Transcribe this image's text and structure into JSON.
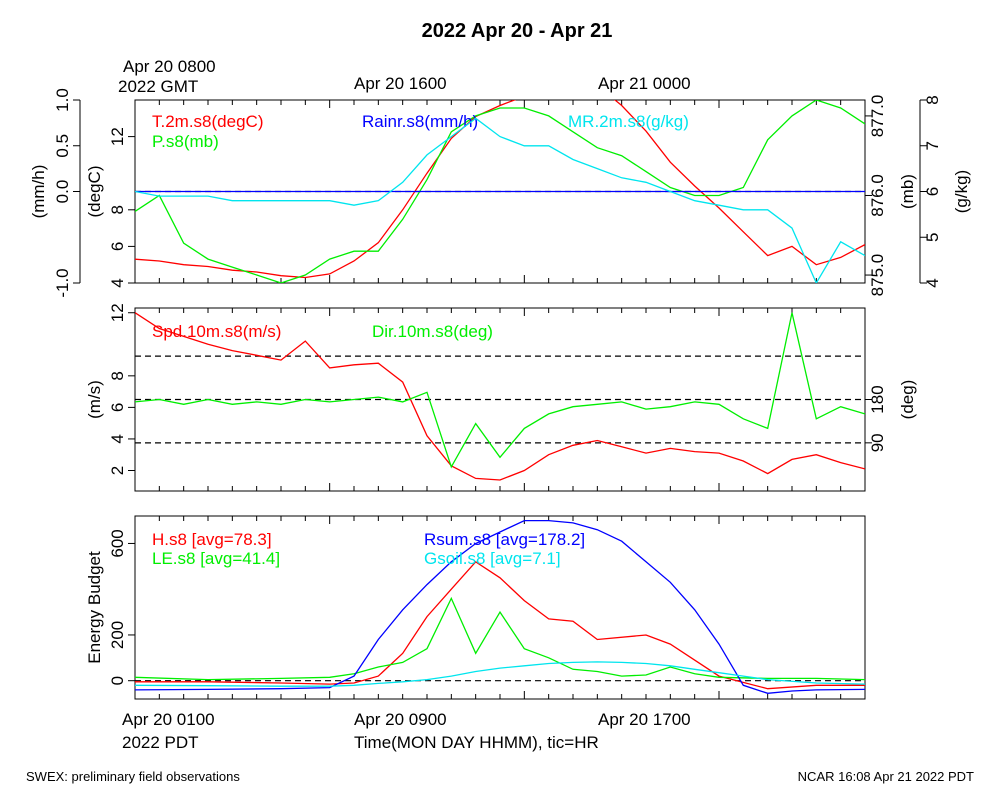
{
  "title": "2022 Apr 20 - Apr 21",
  "top_time_labels": [
    "Apr 20 0800\n2022 GMT",
    "Apr 20 1600",
    "Apr 21 0000"
  ],
  "bottom_time_labels": [
    "Apr 20 0100\n2022 PDT",
    "Apr 20 0900",
    "Apr 20 1700"
  ],
  "xlabel": "Time(MON DAY HHMM), tic=HR",
  "footer_left": "SWEX: preliminary field observations",
  "footer_right": "NCAR 16:08 Apr 21 2022 PDT",
  "colors": {
    "red": "#ff0000",
    "green": "#00ee00",
    "blue": "#0000ff",
    "cyan": "#00e5ee",
    "black": "#000000"
  },
  "chart_data": [
    {
      "type": "line",
      "panel": "top",
      "x_unit": "hours since Apr 20 0100 PDT",
      "xlim": [
        0,
        30
      ],
      "axes": {
        "left_outer": {
          "label": "(mm/h)",
          "ticks": [
            "-1.0",
            "0.0",
            "0.5",
            "1.0"
          ],
          "range": [
            -1.0,
            1.0
          ]
        },
        "left_inner": {
          "label": "(degC)",
          "ticks": [
            "4",
            "6",
            "8",
            "12"
          ],
          "range": [
            4,
            14
          ]
        },
        "right_inner": {
          "label": "(mb)",
          "ticks": [
            "875.0",
            "876.0",
            "877.0"
          ],
          "range": [
            874.9,
            877.2
          ]
        },
        "right_outer": {
          "label": "(g/kg)",
          "ticks": [
            "4",
            "5",
            "6",
            "7",
            "8"
          ],
          "range": [
            4,
            8
          ]
        }
      },
      "reference_lines": [
        {
          "axis": "left_outer",
          "y": 0.0,
          "style": "dashed"
        }
      ],
      "series": [
        {
          "name": "T.2m.s8(degC)",
          "color": "#ff0000",
          "axis": "left_inner",
          "x": [
            0,
            1,
            2,
            3,
            4,
            5,
            6,
            7,
            8,
            9,
            10,
            11,
            12,
            13,
            14,
            15,
            16,
            17,
            18,
            19,
            20,
            21,
            22,
            23,
            24,
            25,
            26,
            27,
            28,
            29,
            30
          ],
          "y": [
            5.3,
            5.2,
            5.0,
            4.9,
            4.7,
            4.6,
            4.4,
            4.3,
            4.5,
            5.2,
            6.2,
            8.0,
            10.0,
            11.9,
            13.1,
            13.7,
            14.2,
            14.3,
            14.5,
            14.8,
            13.7,
            12.3,
            10.6,
            9.3,
            8.1,
            6.8,
            5.5,
            6.0,
            5.0,
            5.4,
            6.1
          ]
        },
        {
          "name": "P.s8(mb)",
          "color": "#00ee00",
          "axis": "right_inner",
          "x": [
            0,
            1,
            2,
            3,
            4,
            5,
            6,
            7,
            8,
            9,
            10,
            11,
            12,
            13,
            14,
            15,
            16,
            17,
            18,
            19,
            20,
            21,
            22,
            23,
            24,
            25,
            26,
            27,
            28,
            29,
            30
          ],
          "y": [
            875.8,
            876.0,
            875.4,
            875.2,
            875.1,
            875.0,
            874.9,
            875.0,
            875.2,
            875.3,
            875.3,
            875.7,
            876.2,
            876.8,
            877.0,
            877.1,
            877.1,
            877.0,
            876.8,
            876.6,
            876.5,
            876.3,
            876.1,
            876.0,
            876.0,
            876.1,
            876.7,
            877.0,
            877.2,
            877.1,
            876.9
          ]
        },
        {
          "name": "Rainr.s8(mm/h)",
          "color": "#0000ff",
          "axis": "left_outer",
          "x": [
            0,
            30
          ],
          "y": [
            0.0,
            0.0
          ]
        },
        {
          "name": "MR.2m.s8(g/kg)",
          "color": "#00e5ee",
          "axis": "right_outer",
          "x": [
            0,
            1,
            2,
            3,
            4,
            5,
            6,
            7,
            8,
            9,
            10,
            11,
            12,
            13,
            14,
            15,
            16,
            17,
            18,
            19,
            20,
            21,
            22,
            23,
            24,
            25,
            26,
            27,
            28,
            29,
            30
          ],
          "y": [
            6.0,
            5.9,
            5.9,
            5.9,
            5.8,
            5.8,
            5.8,
            5.8,
            5.8,
            5.7,
            5.8,
            6.2,
            6.8,
            7.2,
            7.6,
            7.2,
            7.0,
            7.0,
            6.7,
            6.5,
            6.3,
            6.2,
            6.0,
            5.8,
            5.7,
            5.6,
            5.6,
            5.2,
            4.0,
            4.9,
            4.6
          ]
        }
      ]
    },
    {
      "type": "line",
      "panel": "middle",
      "x_unit": "hours since Apr 20 0100 PDT",
      "xlim": [
        0,
        30
      ],
      "axes": {
        "left": {
          "label": "(m/s)",
          "ticks": [
            "2",
            "4",
            "6",
            "8",
            "12"
          ],
          "range": [
            0.7,
            12.3
          ]
        },
        "right": {
          "label": "(deg)",
          "ticks": [
            "90",
            "180"
          ],
          "range": [
            -10,
            370
          ]
        }
      },
      "reference_lines": [
        {
          "axis": "right",
          "y": 90,
          "style": "dashed"
        },
        {
          "axis": "right",
          "y": 180,
          "style": "dashed"
        },
        {
          "axis": "right",
          "y": 270,
          "style": "dashed"
        }
      ],
      "series": [
        {
          "name": "Spd.10m.s8(m/s)",
          "color": "#ff0000",
          "axis": "left",
          "x": [
            0,
            1,
            2,
            3,
            4,
            5,
            6,
            7,
            8,
            9,
            10,
            11,
            12,
            13,
            14,
            15,
            16,
            17,
            18,
            19,
            20,
            21,
            22,
            23,
            24,
            25,
            26,
            27,
            28,
            29,
            30
          ],
          "y": [
            12.0,
            11.0,
            10.5,
            10.0,
            9.6,
            9.3,
            9.0,
            10.2,
            8.5,
            8.7,
            8.8,
            7.6,
            4.2,
            2.3,
            1.5,
            1.4,
            2.0,
            3.0,
            3.6,
            3.9,
            3.5,
            3.1,
            3.4,
            3.2,
            3.1,
            2.6,
            1.8,
            2.7,
            3.0,
            2.5,
            2.1
          ]
        },
        {
          "name": "Dir.10m.s8(deg)",
          "color": "#00ee00",
          "axis": "right",
          "x": [
            0,
            1,
            2,
            3,
            4,
            5,
            6,
            7,
            8,
            9,
            10,
            11,
            12,
            13,
            14,
            15,
            16,
            17,
            18,
            19,
            20,
            21,
            22,
            23,
            24,
            25,
            26,
            27,
            28,
            29,
            30
          ],
          "y": [
            175,
            180,
            170,
            180,
            170,
            175,
            170,
            180,
            175,
            180,
            185,
            175,
            195,
            40,
            130,
            60,
            120,
            150,
            165,
            170,
            175,
            160,
            165,
            175,
            170,
            140,
            120,
            360,
            140,
            165,
            150
          ]
        }
      ]
    },
    {
      "type": "line",
      "panel": "bottom",
      "x_unit": "hours since Apr 20 0100 PDT",
      "xlim": [
        0,
        30
      ],
      "ylabel": "Energy Budget",
      "axes": {
        "left": {
          "label": "Energy Budget",
          "ticks": [
            "0",
            "200",
            "600"
          ],
          "range": [
            -80,
            720
          ]
        }
      },
      "reference_lines": [
        {
          "axis": "left",
          "y": 0,
          "style": "dashed"
        }
      ],
      "series": [
        {
          "name": "H.s8 [avg=78.3]",
          "color": "#ff0000",
          "axis": "left",
          "x": [
            0,
            3,
            6,
            8,
            9,
            10,
            11,
            12,
            13,
            14,
            15,
            16,
            17,
            18,
            19,
            21,
            22,
            24,
            26,
            28,
            30
          ],
          "y": [
            -5,
            -5,
            -10,
            -15,
            -10,
            20,
            120,
            280,
            400,
            520,
            450,
            350,
            270,
            260,
            180,
            200,
            160,
            20,
            -35,
            -20,
            -20
          ]
        },
        {
          "name": "LE.s8 [avg=41.4]",
          "color": "#00ee00",
          "axis": "left",
          "x": [
            0,
            3,
            6,
            8,
            9,
            10,
            11,
            12,
            13,
            14,
            15,
            16,
            17,
            18,
            19,
            20,
            21,
            22,
            23,
            24,
            26,
            28,
            30
          ],
          "y": [
            15,
            5,
            10,
            15,
            30,
            60,
            80,
            140,
            360,
            120,
            300,
            140,
            100,
            50,
            40,
            20,
            25,
            60,
            30,
            15,
            10,
            10,
            5
          ]
        },
        {
          "name": "Rsum.s8 [avg=178.2]",
          "color": "#0000ff",
          "axis": "left",
          "x": [
            0,
            3,
            6,
            8,
            9,
            10,
            11,
            12,
            13,
            14,
            15,
            16,
            17,
            18,
            19,
            20,
            21,
            22,
            23,
            24,
            25,
            26,
            27,
            28,
            30
          ],
          "y": [
            -40,
            -38,
            -35,
            -30,
            20,
            180,
            310,
            420,
            520,
            600,
            650,
            700,
            700,
            690,
            660,
            610,
            520,
            430,
            310,
            160,
            -20,
            -55,
            -45,
            -40,
            -38
          ]
        },
        {
          "name": "Gsoil.s8 [avg=7.1]",
          "color": "#00e5ee",
          "axis": "left",
          "x": [
            0,
            3,
            6,
            8,
            9,
            10,
            11,
            12,
            13,
            14,
            15,
            16,
            17,
            18,
            19,
            20,
            21,
            22,
            23,
            24,
            25,
            26,
            28,
            30
          ],
          "y": [
            -20,
            -22,
            -24,
            -24,
            -20,
            -12,
            -5,
            5,
            20,
            40,
            55,
            65,
            75,
            80,
            82,
            80,
            75,
            65,
            50,
            35,
            20,
            5,
            -10,
            -15
          ]
        }
      ]
    }
  ]
}
